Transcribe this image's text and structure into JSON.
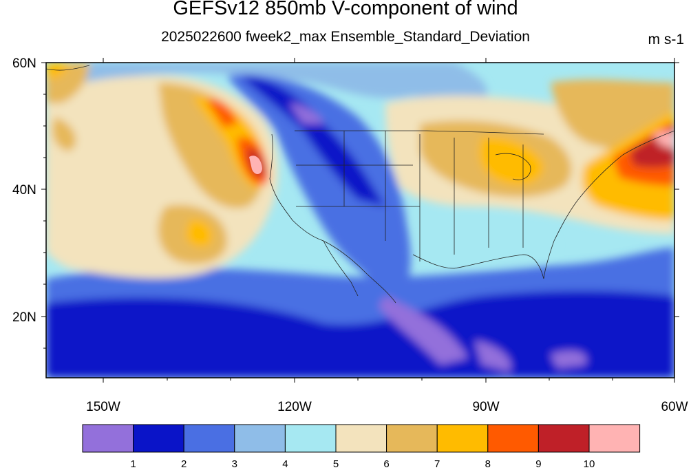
{
  "title": "GEFSv12 850mb V-component of wind",
  "subtitle": "2025022600 fweek2_max Ensemble_Standard_Deviation",
  "units": "m s-1",
  "lat_labels": [
    "60N",
    "40N",
    "20N"
  ],
  "lon_labels": [
    "150W",
    "120W",
    "90W",
    "60W"
  ],
  "colorbar": {
    "labels": [
      "1",
      "2",
      "3",
      "4",
      "5",
      "6",
      "7",
      "8",
      "9",
      "10"
    ],
    "colors": [
      "#9370db",
      "#0a14c8",
      "#4a6fe3",
      "#8fbde8",
      "#a6e8f2",
      "#f3e3bd",
      "#e6b85a",
      "#ffbb00",
      "#ff5a00",
      "#bf2028",
      "#ffb3b3"
    ]
  }
}
